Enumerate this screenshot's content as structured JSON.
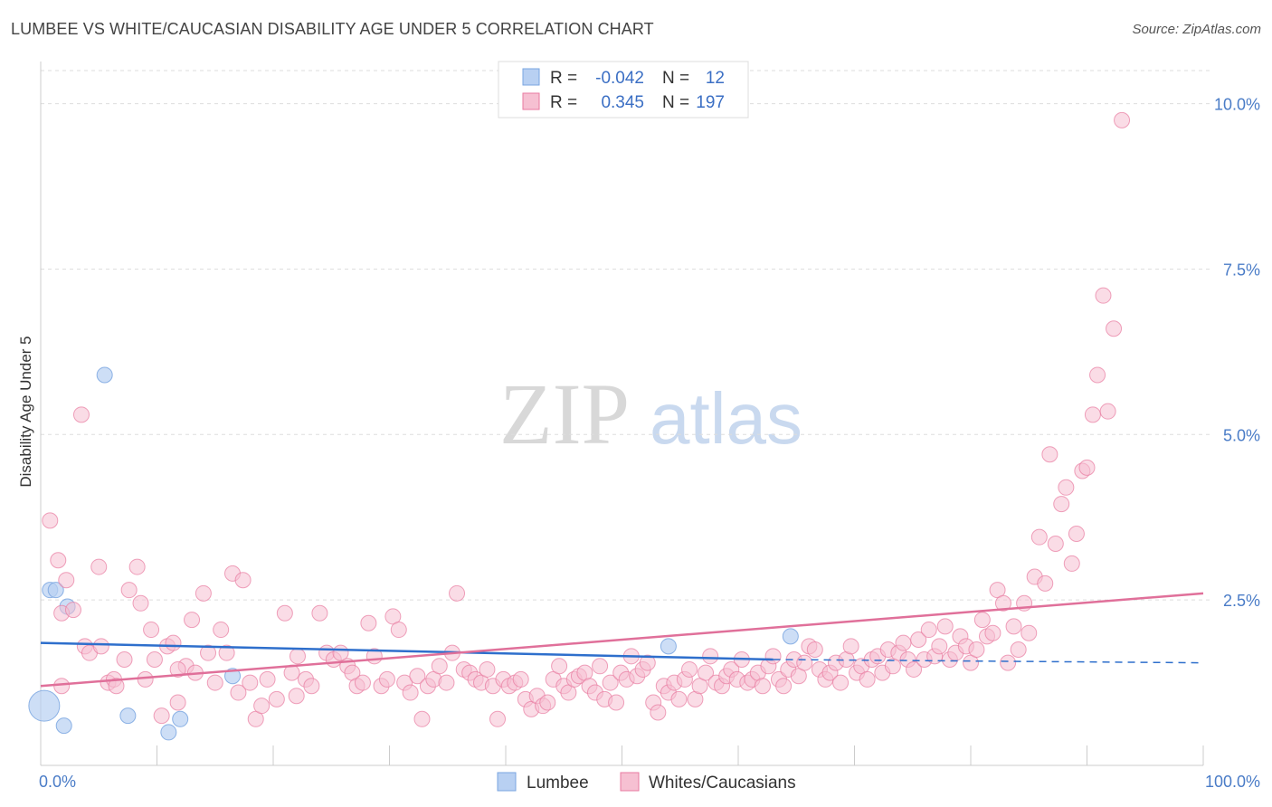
{
  "title": "LUMBEE VS WHITE/CAUCASIAN DISABILITY AGE UNDER 5 CORRELATION CHART",
  "source": "Source: ZipAtlas.com",
  "watermark": {
    "part1": "ZIP",
    "part2": "atlas"
  },
  "colors": {
    "lumbee": "#7aa6e0",
    "lumbee_fill": "#b8d0f2",
    "white": "#e87aa0",
    "white_fill": "#f6c0d2",
    "lumbee_line": "#2e6fcc",
    "white_line": "#e0709a"
  },
  "legend_top": {
    "rows": [
      {
        "r_label": "R =",
        "r_value": "-0.042",
        "n_label": "N =",
        "n_value": "12"
      },
      {
        "r_label": "R =",
        "r_value": "0.345",
        "n_label": "N =",
        "n_value": "197"
      }
    ]
  },
  "chart_data": {
    "type": "scatter",
    "ylabel": "Disability Age Under 5",
    "xlim": [
      0,
      100
    ],
    "ylim": [
      0,
      10.5
    ],
    "x_tick_labels": [
      "0.0%",
      "100.0%"
    ],
    "y_ticks": [
      2.5,
      5.0,
      7.5,
      10.0
    ],
    "y_tick_labels": [
      "2.5%",
      "5.0%",
      "7.5%",
      "10.0%"
    ],
    "legend_placement": "bottom-center",
    "series": [
      {
        "name": "Lumbee",
        "points": [
          [
            0.3,
            0.9
          ],
          [
            0.8,
            2.65
          ],
          [
            1.3,
            2.65
          ],
          [
            2.0,
            0.6
          ],
          [
            2.3,
            2.4
          ],
          [
            5.5,
            5.9
          ],
          [
            7.5,
            0.75
          ],
          [
            11.0,
            0.5
          ],
          [
            12.0,
            0.7
          ],
          [
            16.5,
            1.35
          ],
          [
            54.0,
            1.8
          ],
          [
            64.5,
            1.95
          ]
        ],
        "trend": {
          "x": [
            0,
            63
          ],
          "y": [
            1.85,
            1.6
          ],
          "dashed_to": [
            100,
            1.55
          ]
        }
      },
      {
        "name": "Whites/Caucasians",
        "points": [
          [
            0.8,
            3.7
          ],
          [
            1.5,
            3.1
          ],
          [
            1.8,
            2.3
          ],
          [
            2.2,
            2.8
          ],
          [
            2.8,
            2.35
          ],
          [
            3.5,
            5.3
          ],
          [
            3.8,
            1.8
          ],
          [
            4.2,
            1.7
          ],
          [
            5.0,
            3.0
          ],
          [
            5.2,
            1.8
          ],
          [
            5.8,
            1.25
          ],
          [
            6.3,
            1.3
          ],
          [
            6.5,
            1.2
          ],
          [
            7.2,
            1.6
          ],
          [
            7.6,
            2.65
          ],
          [
            8.3,
            3.0
          ],
          [
            8.6,
            2.45
          ],
          [
            9.0,
            1.3
          ],
          [
            9.5,
            2.05
          ],
          [
            9.8,
            1.6
          ],
          [
            10.4,
            0.75
          ],
          [
            10.9,
            1.8
          ],
          [
            11.4,
            1.85
          ],
          [
            11.8,
            0.95
          ],
          [
            12.5,
            1.5
          ],
          [
            13.0,
            2.2
          ],
          [
            13.3,
            1.4
          ],
          [
            14.0,
            2.6
          ],
          [
            14.4,
            1.7
          ],
          [
            15.0,
            1.25
          ],
          [
            15.5,
            2.05
          ],
          [
            16.0,
            1.7
          ],
          [
            16.5,
            2.9
          ],
          [
            17.0,
            1.1
          ],
          [
            17.4,
            2.8
          ],
          [
            18.0,
            1.25
          ],
          [
            18.5,
            0.7
          ],
          [
            19.0,
            0.9
          ],
          [
            19.5,
            1.3
          ],
          [
            20.3,
            1.0
          ],
          [
            21.0,
            2.3
          ],
          [
            21.6,
            1.4
          ],
          [
            22.1,
            1.65
          ],
          [
            22.8,
            1.3
          ],
          [
            23.3,
            1.2
          ],
          [
            24.0,
            2.3
          ],
          [
            24.6,
            1.7
          ],
          [
            25.2,
            1.6
          ],
          [
            25.8,
            1.7
          ],
          [
            26.4,
            1.5
          ],
          [
            26.8,
            1.4
          ],
          [
            27.2,
            1.2
          ],
          [
            27.7,
            1.25
          ],
          [
            28.2,
            2.15
          ],
          [
            28.7,
            1.65
          ],
          [
            29.3,
            1.2
          ],
          [
            29.8,
            1.3
          ],
          [
            30.3,
            2.25
          ],
          [
            30.8,
            2.05
          ],
          [
            31.3,
            1.25
          ],
          [
            31.8,
            1.1
          ],
          [
            32.4,
            1.35
          ],
          [
            32.8,
            0.7
          ],
          [
            33.3,
            1.2
          ],
          [
            33.8,
            1.3
          ],
          [
            34.3,
            1.5
          ],
          [
            34.9,
            1.25
          ],
          [
            35.4,
            1.7
          ],
          [
            35.8,
            2.6
          ],
          [
            36.4,
            1.45
          ],
          [
            36.9,
            1.4
          ],
          [
            37.4,
            1.3
          ],
          [
            37.9,
            1.25
          ],
          [
            38.4,
            1.45
          ],
          [
            38.9,
            1.2
          ],
          [
            39.3,
            0.7
          ],
          [
            39.8,
            1.3
          ],
          [
            40.3,
            1.2
          ],
          [
            40.8,
            1.25
          ],
          [
            41.3,
            1.3
          ],
          [
            41.7,
            1.0
          ],
          [
            42.2,
            0.85
          ],
          [
            42.7,
            1.05
          ],
          [
            43.2,
            0.9
          ],
          [
            43.6,
            0.95
          ],
          [
            44.1,
            1.3
          ],
          [
            44.6,
            1.5
          ],
          [
            45.0,
            1.2
          ],
          [
            45.4,
            1.1
          ],
          [
            45.9,
            1.3
          ],
          [
            46.3,
            1.35
          ],
          [
            46.8,
            1.4
          ],
          [
            47.2,
            1.2
          ],
          [
            47.7,
            1.1
          ],
          [
            48.1,
            1.5
          ],
          [
            48.5,
            1.0
          ],
          [
            49.0,
            1.25
          ],
          [
            49.5,
            0.95
          ],
          [
            49.9,
            1.4
          ],
          [
            50.4,
            1.3
          ],
          [
            50.8,
            1.65
          ],
          [
            51.3,
            1.35
          ],
          [
            51.8,
            1.45
          ],
          [
            52.2,
            1.55
          ],
          [
            52.7,
            0.95
          ],
          [
            53.1,
            0.8
          ],
          [
            53.6,
            1.2
          ],
          [
            54.0,
            1.1
          ],
          [
            54.5,
            1.25
          ],
          [
            54.9,
            1.0
          ],
          [
            55.4,
            1.3
          ],
          [
            55.8,
            1.45
          ],
          [
            56.3,
            1.0
          ],
          [
            56.7,
            1.2
          ],
          [
            57.2,
            1.4
          ],
          [
            57.6,
            1.65
          ],
          [
            58.1,
            1.25
          ],
          [
            58.6,
            1.2
          ],
          [
            59.0,
            1.35
          ],
          [
            59.4,
            1.45
          ],
          [
            59.9,
            1.3
          ],
          [
            60.3,
            1.6
          ],
          [
            60.8,
            1.25
          ],
          [
            61.2,
            1.3
          ],
          [
            61.7,
            1.4
          ],
          [
            62.1,
            1.2
          ],
          [
            62.6,
            1.5
          ],
          [
            63.0,
            1.65
          ],
          [
            63.5,
            1.3
          ],
          [
            63.9,
            1.2
          ],
          [
            64.3,
            1.45
          ],
          [
            64.8,
            1.6
          ],
          [
            65.2,
            1.35
          ],
          [
            65.7,
            1.55
          ],
          [
            66.1,
            1.8
          ],
          [
            66.6,
            1.75
          ],
          [
            67.0,
            1.45
          ],
          [
            67.5,
            1.3
          ],
          [
            67.9,
            1.4
          ],
          [
            68.4,
            1.55
          ],
          [
            68.8,
            1.25
          ],
          [
            69.3,
            1.6
          ],
          [
            69.7,
            1.8
          ],
          [
            70.2,
            1.4
          ],
          [
            70.6,
            1.5
          ],
          [
            71.1,
            1.3
          ],
          [
            71.5,
            1.6
          ],
          [
            72.0,
            1.65
          ],
          [
            72.4,
            1.4
          ],
          [
            72.9,
            1.75
          ],
          [
            73.3,
            1.5
          ],
          [
            73.8,
            1.7
          ],
          [
            74.2,
            1.85
          ],
          [
            74.6,
            1.6
          ],
          [
            75.1,
            1.45
          ],
          [
            75.5,
            1.9
          ],
          [
            76.0,
            1.6
          ],
          [
            76.4,
            2.05
          ],
          [
            76.9,
            1.65
          ],
          [
            77.3,
            1.8
          ],
          [
            77.8,
            2.1
          ],
          [
            78.2,
            1.6
          ],
          [
            78.7,
            1.7
          ],
          [
            79.1,
            1.95
          ],
          [
            79.6,
            1.8
          ],
          [
            80.0,
            1.55
          ],
          [
            80.5,
            1.75
          ],
          [
            81.0,
            2.2
          ],
          [
            81.4,
            1.95
          ],
          [
            81.9,
            2.0
          ],
          [
            82.3,
            2.65
          ],
          [
            82.8,
            2.45
          ],
          [
            83.2,
            1.55
          ],
          [
            83.7,
            2.1
          ],
          [
            84.1,
            1.75
          ],
          [
            84.6,
            2.45
          ],
          [
            85.0,
            2.0
          ],
          [
            85.5,
            2.85
          ],
          [
            85.9,
            3.45
          ],
          [
            86.4,
            2.75
          ],
          [
            86.8,
            4.7
          ],
          [
            87.3,
            3.35
          ],
          [
            87.8,
            3.95
          ],
          [
            88.2,
            4.2
          ],
          [
            88.7,
            3.05
          ],
          [
            89.1,
            3.5
          ],
          [
            89.6,
            4.45
          ],
          [
            90.0,
            4.5
          ],
          [
            90.5,
            5.3
          ],
          [
            90.9,
            5.9
          ],
          [
            91.4,
            7.1
          ],
          [
            91.8,
            5.35
          ],
          [
            92.3,
            6.6
          ],
          [
            93.0,
            9.75
          ],
          [
            1.8,
            1.2
          ],
          [
            11.8,
            1.45
          ],
          [
            22.0,
            1.05
          ]
        ],
        "trend": {
          "x": [
            0,
            100
          ],
          "y": [
            1.2,
            2.6
          ]
        }
      }
    ]
  }
}
